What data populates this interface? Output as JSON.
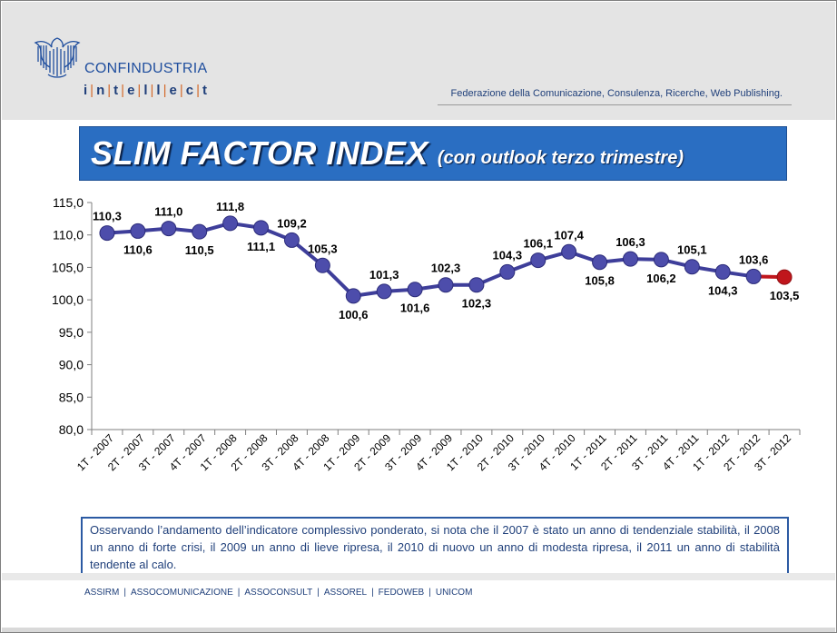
{
  "header": {
    "brand_name": "CONFINDUSTRIA",
    "brand_sub": [
      "i",
      "n",
      "t",
      "e",
      "l",
      "l",
      "e",
      "c",
      "t"
    ],
    "tagline": "Federazione della Comunicazione, Consulenza, Ricerche, Web Publishing."
  },
  "title": {
    "main": "SLIM FACTOR INDEX",
    "sub": "(con outlook terzo trimestre)"
  },
  "colors": {
    "header_bg": "#e4e4e4",
    "title_bar": "#2a6ec2",
    "series_line": "#3e3e9a",
    "forecast": "#c0161c",
    "text_blue": "#1f3f7a"
  },
  "chart_data": {
    "type": "line",
    "categories": [
      "1T - 2007",
      "2T - 2007",
      "3T - 2007",
      "4T - 2007",
      "1T - 2008",
      "2T - 2008",
      "3T - 2008",
      "4T - 2008",
      "1T - 2009",
      "2T - 2009",
      "3T - 2009",
      "4T - 2009",
      "1T - 2010",
      "2T - 2010",
      "3T - 2010",
      "4T - 2010",
      "1T - 2011",
      "2T - 2011",
      "3T - 2011",
      "4T - 2011",
      "1T - 2012",
      "2T - 2012",
      "3T - 2012"
    ],
    "series": [
      {
        "values": [
          110.3,
          110.6,
          111.0,
          110.5,
          111.8,
          111.1,
          109.2,
          105.3,
          100.6,
          101.3,
          101.6,
          102.3,
          102.3,
          104.3,
          106.1,
          107.4,
          105.8,
          106.3,
          106.2,
          105.1,
          104.3,
          103.6,
          103.5
        ],
        "labels": [
          "110,3",
          "110,6",
          "111,0",
          "110,5",
          "111,8",
          "111,1",
          "109,2",
          "105,3",
          "100,6",
          "101,3",
          "101,6",
          "102,3",
          "102,3",
          "104,3",
          "106,1",
          "107,4",
          "105,8",
          "106,3",
          "106,2",
          "105,1",
          "104,3",
          "103,6",
          "103,5"
        ]
      }
    ],
    "forecast_index": 22,
    "ylim": [
      80,
      115
    ],
    "yticks": [
      "80,0",
      "85,0",
      "90,0",
      "95,0",
      "100,0",
      "105,0",
      "110,0",
      "115,0"
    ],
    "grid": false,
    "legend": "none"
  },
  "note": "Osservando l’andamento dell’indicatore complessivo ponderato, si nota che il 2007 è stato un anno di tendenziale stabilità, il 2008 un anno di forte crisi, il 2009 un anno di lieve ripresa, il 2010 di nuovo un anno di modesta ripresa, il 2011 un anno di stabilità tendente al calo.",
  "footer": [
    "ASSIRM",
    "ASSOCOMUNICAZIONE",
    "ASSOCONSULT",
    "ASSOREL",
    "FEDOWEB",
    "UNICOM"
  ]
}
